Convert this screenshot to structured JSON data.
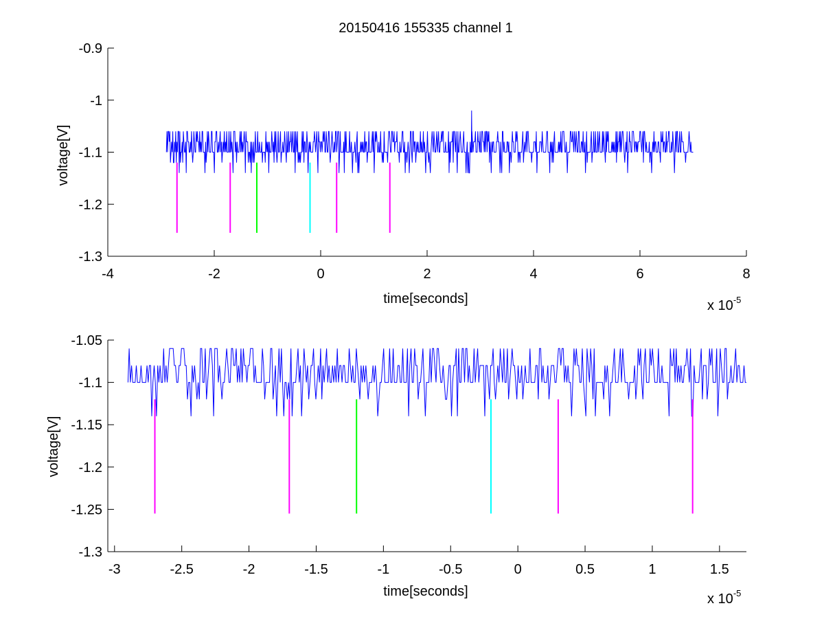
{
  "figure_title": "20150416 155335 channel 1",
  "colors": {
    "signal": "#0000ff",
    "magenta": "#ff00ff",
    "green": "#00ff00",
    "cyan": "#00ffff",
    "axis": "#000000",
    "background": "#ffffff"
  },
  "chart_data": [
    {
      "type": "line",
      "title": "20150416 155335 channel 1",
      "xlabel": "time[seconds]",
      "ylabel": "voltage[V]",
      "x_multiplier_text": "x 10",
      "x_multiplier_exp": "-5",
      "xlim": [
        -4,
        8
      ],
      "ylim": [
        -1.3,
        -0.9
      ],
      "xticks": [
        -4,
        -2,
        0,
        2,
        4,
        6,
        8
      ],
      "xtick_labels": [
        "-4",
        "-2",
        "0",
        "2",
        "4",
        "6",
        "8"
      ],
      "yticks": [
        -1.3,
        -1.2,
        -1.1,
        -1,
        -0.9
      ],
      "ytick_labels": [
        "-1.3",
        "-1.2",
        "-1.1",
        "-1",
        "-0.9"
      ],
      "grid": false,
      "signal": {
        "x_start": -2.9,
        "x_end": 7.0,
        "baseline": -1.1,
        "levels": [
          -1.14,
          -1.12,
          -1.1,
          -1.08,
          -1.06
        ],
        "spike": {
          "x": 2.83,
          "y": -1.02
        }
      },
      "markers": [
        {
          "x": -2.7,
          "y_top": -1.12,
          "y_bottom": -1.255,
          "color": "magenta"
        },
        {
          "x": -1.7,
          "y_top": -1.12,
          "y_bottom": -1.255,
          "color": "magenta"
        },
        {
          "x": -1.2,
          "y_top": -1.12,
          "y_bottom": -1.255,
          "color": "green"
        },
        {
          "x": -0.2,
          "y_top": -1.12,
          "y_bottom": -1.255,
          "color": "cyan"
        },
        {
          "x": 0.3,
          "y_top": -1.12,
          "y_bottom": -1.255,
          "color": "magenta"
        },
        {
          "x": 1.3,
          "y_top": -1.12,
          "y_bottom": -1.255,
          "color": "magenta"
        }
      ]
    },
    {
      "type": "line",
      "title": "",
      "xlabel": "time[seconds]",
      "ylabel": "voltage[V]",
      "x_multiplier_text": "x 10",
      "x_multiplier_exp": "-5",
      "xlim": [
        -3.05,
        1.7
      ],
      "ylim": [
        -1.3,
        -1.05
      ],
      "xticks": [
        -3,
        -2.5,
        -2,
        -1.5,
        -1,
        -0.5,
        0,
        0.5,
        1,
        1.5
      ],
      "xtick_labels": [
        "-3",
        "-2.5",
        "-2",
        "-1.5",
        "-1",
        "-0.5",
        "0",
        "0.5",
        "1",
        "1.5"
      ],
      "yticks": [
        -1.3,
        -1.25,
        -1.2,
        -1.15,
        -1.1,
        -1.05
      ],
      "ytick_labels": [
        "-1.3",
        "-1.25",
        "-1.2",
        "-1.15",
        "-1.1",
        "-1.05"
      ],
      "grid": false,
      "signal": {
        "x_start": -2.9,
        "x_end": 1.7,
        "baseline": -1.1,
        "levels": [
          -1.14,
          -1.12,
          -1.1,
          -1.08,
          -1.06
        ]
      },
      "markers": [
        {
          "x": -2.7,
          "y_top": -1.12,
          "y_bottom": -1.255,
          "color": "magenta"
        },
        {
          "x": -1.7,
          "y_top": -1.12,
          "y_bottom": -1.255,
          "color": "magenta"
        },
        {
          "x": -1.2,
          "y_top": -1.12,
          "y_bottom": -1.255,
          "color": "green"
        },
        {
          "x": -0.2,
          "y_top": -1.12,
          "y_bottom": -1.255,
          "color": "cyan"
        },
        {
          "x": 0.3,
          "y_top": -1.12,
          "y_bottom": -1.255,
          "color": "magenta"
        },
        {
          "x": 1.3,
          "y_top": -1.12,
          "y_bottom": -1.255,
          "color": "magenta"
        }
      ]
    }
  ]
}
